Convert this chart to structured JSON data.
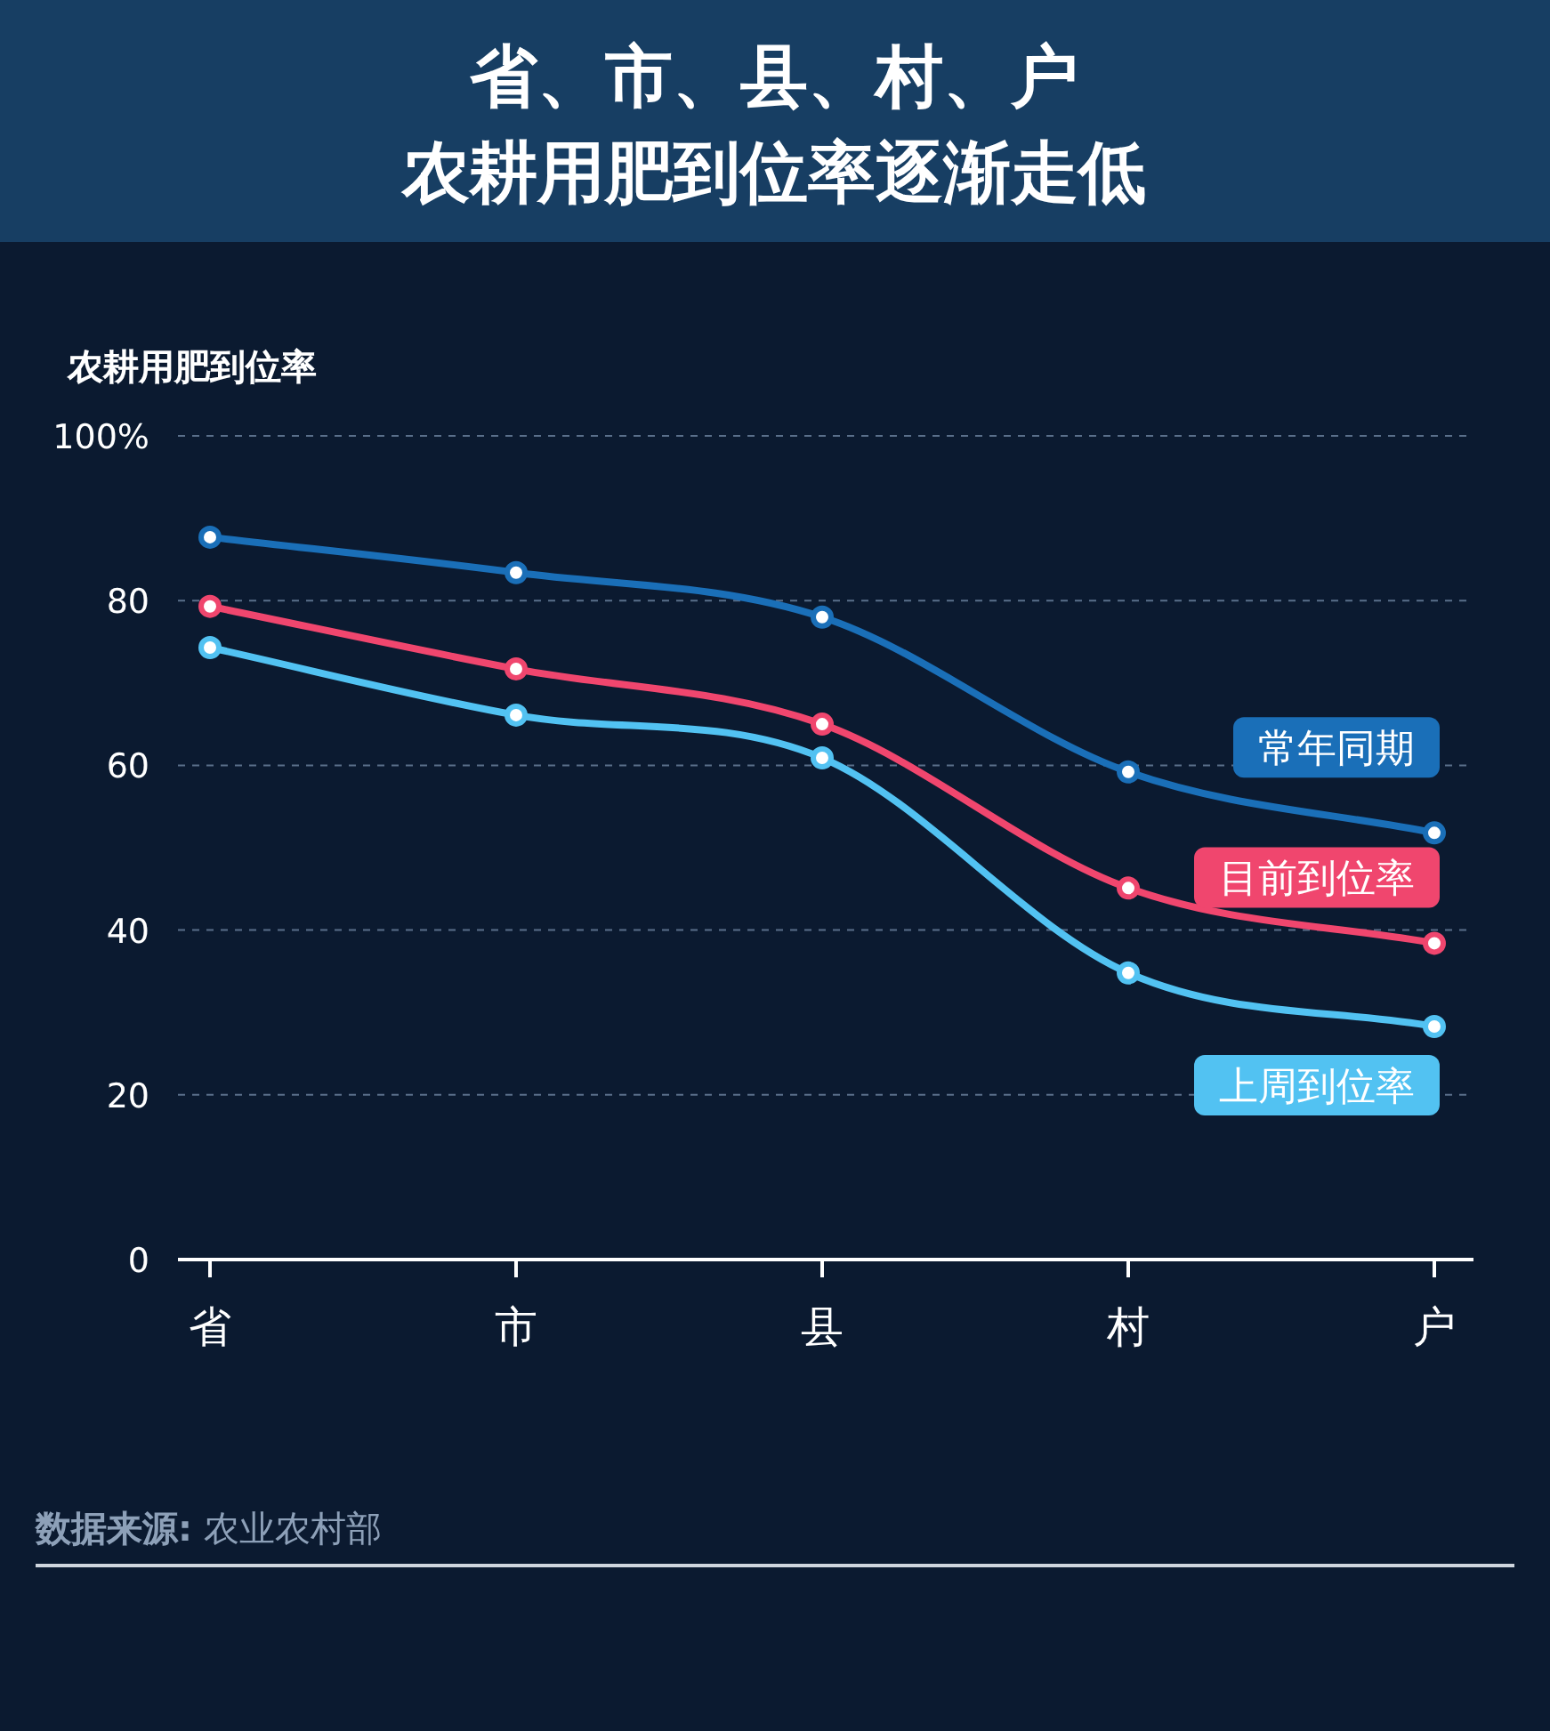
{
  "chart_data": {
    "type": "line",
    "title": "省、市、县、村、户",
    "subtitle": "农耕用肥到位率逐渐走低",
    "ylabel": "农耕用肥到位率",
    "categories": [
      "省",
      "市",
      "县",
      "村",
      "户"
    ],
    "series": [
      {
        "name": "常年同期",
        "color": "#1a6fb8",
        "values": [
          87.7,
          83.4,
          78.0,
          59.2,
          51.8
        ]
      },
      {
        "name": "目前到位率",
        "color": "#f0466e",
        "values": [
          79.3,
          71.7,
          65.0,
          45.1,
          38.4
        ]
      },
      {
        "name": "上周到位率",
        "color": "#52c2f2",
        "values": [
          74.3,
          66.1,
          60.9,
          34.8,
          28.3
        ]
      }
    ],
    "ylim": [
      0,
      100
    ],
    "yticks": [
      0,
      20,
      40,
      60,
      80,
      {
        "value": 100,
        "label": "100%"
      }
    ],
    "grid": "y",
    "marker": "circle",
    "line_style": "solid",
    "annotations": [
      "**数据来源:** 农业农村部"
    ]
  }
}
